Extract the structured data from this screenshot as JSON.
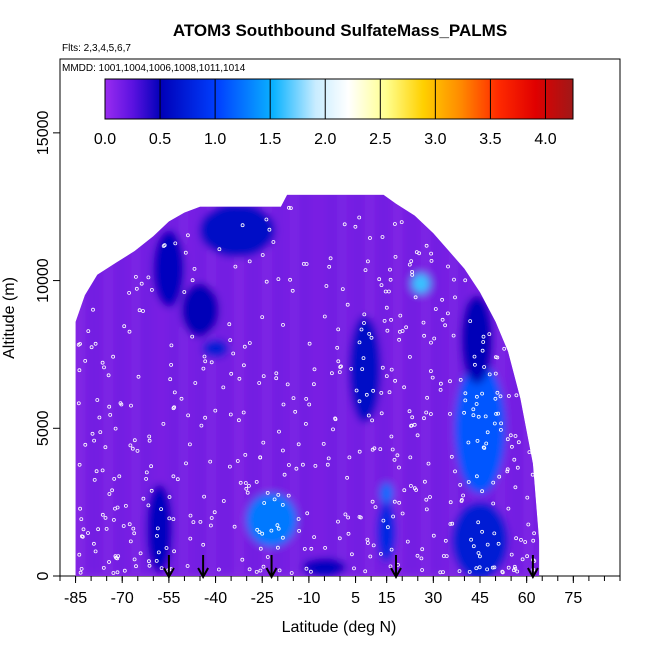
{
  "chart_data": {
    "type": "heatmap",
    "title": "ATOM3 Southbound SulfateMass_PALMS",
    "subtitle_flights": "Flts: 2,3,4,5,6,7",
    "subtitle_dates": "MMDD: 1001,1004,1006,1008,1011,1014",
    "xlabel": "Latitude (deg N)",
    "ylabel": "Altitude (m)",
    "xlim": [
      -90,
      90
    ],
    "ylim": [
      0,
      17500
    ],
    "x_ticks": [
      -85,
      -70,
      -55,
      -40,
      -25,
      -10,
      5,
      15,
      30,
      45,
      60,
      75
    ],
    "y_ticks": [
      0,
      5000,
      10000,
      15000
    ],
    "colorbar": {
      "min": 0,
      "max": 4.25,
      "ticks": [
        "0.0",
        "0.5",
        "1.0",
        "1.5",
        "2.0",
        "2.5",
        "3.0",
        "3.5",
        "4.0"
      ],
      "tick_values": [
        0,
        0.5,
        1.0,
        1.5,
        2.0,
        2.5,
        3.0,
        3.5,
        4.0
      ]
    },
    "arrows_latitude": [
      -55,
      -44,
      -22,
      18,
      62
    ],
    "colors": {
      "background_field": "#8a2be2",
      "low": "#7a22ee",
      "mid_blue": "#0000c8",
      "light_blue": "#4fb4ff"
    },
    "coverage_profile": [
      {
        "lat": -85,
        "top": 8600
      },
      {
        "lat": -82,
        "top": 9500
      },
      {
        "lat": -78,
        "top": 10200
      },
      {
        "lat": -72,
        "top": 10600
      },
      {
        "lat": -66,
        "top": 11000
      },
      {
        "lat": -60,
        "top": 11500
      },
      {
        "lat": -55,
        "top": 12000
      },
      {
        "lat": -50,
        "top": 12300
      },
      {
        "lat": -45,
        "top": 12500
      },
      {
        "lat": -30,
        "top": 12500
      },
      {
        "lat": -19,
        "top": 12500
      },
      {
        "lat": -17,
        "top": 12900
      },
      {
        "lat": 14,
        "top": 12900
      },
      {
        "lat": 18,
        "top": 12600
      },
      {
        "lat": 24,
        "top": 12200
      },
      {
        "lat": 30,
        "top": 11600
      },
      {
        "lat": 35,
        "top": 11000
      },
      {
        "lat": 40,
        "top": 10400
      },
      {
        "lat": 45,
        "top": 9600
      },
      {
        "lat": 50,
        "top": 8600
      },
      {
        "lat": 54,
        "top": 7600
      },
      {
        "lat": 58,
        "top": 6000
      },
      {
        "lat": 62,
        "top": 3800
      },
      {
        "lat": 64,
        "top": 1200
      },
      {
        "lat": 64,
        "top": 0
      }
    ],
    "hotspots": [
      {
        "lat": -33,
        "alt": 11700,
        "value": 0.6,
        "rx": 12,
        "ry": 900
      },
      {
        "lat": -55,
        "alt": 10400,
        "value": 0.55,
        "rx": 5,
        "ry": 1300
      },
      {
        "lat": -45,
        "alt": 9000,
        "value": 0.5,
        "rx": 6,
        "ry": 900
      },
      {
        "lat": -40,
        "alt": 7700,
        "value": 0.7,
        "rx": 4,
        "ry": 300
      },
      {
        "lat": 8,
        "alt": 7000,
        "value": 0.6,
        "rx": 5,
        "ry": 1800
      },
      {
        "lat": 26,
        "alt": 9900,
        "value": 1.6,
        "rx": 3,
        "ry": 350
      },
      {
        "lat": 45,
        "alt": 5000,
        "value": 1.1,
        "rx": 8,
        "ry": 2200
      },
      {
        "lat": 44,
        "alt": 8000,
        "value": 0.5,
        "rx": 5,
        "ry": 1500
      },
      {
        "lat": -22,
        "alt": 1900,
        "value": 1.25,
        "rx": 8,
        "ry": 900
      },
      {
        "lat": 15,
        "alt": 2800,
        "value": 1.2,
        "rx": 2,
        "ry": 350
      },
      {
        "lat": 15,
        "alt": 1500,
        "value": 0.8,
        "rx": 3,
        "ry": 1000
      },
      {
        "lat": -58,
        "alt": 1600,
        "value": 0.55,
        "rx": 4,
        "ry": 1500
      },
      {
        "lat": 45,
        "alt": 1200,
        "value": 0.7,
        "rx": 9,
        "ry": 1300
      },
      {
        "lat": -5,
        "alt": 300,
        "value": 0.55,
        "rx": 7,
        "ry": 300
      }
    ]
  }
}
